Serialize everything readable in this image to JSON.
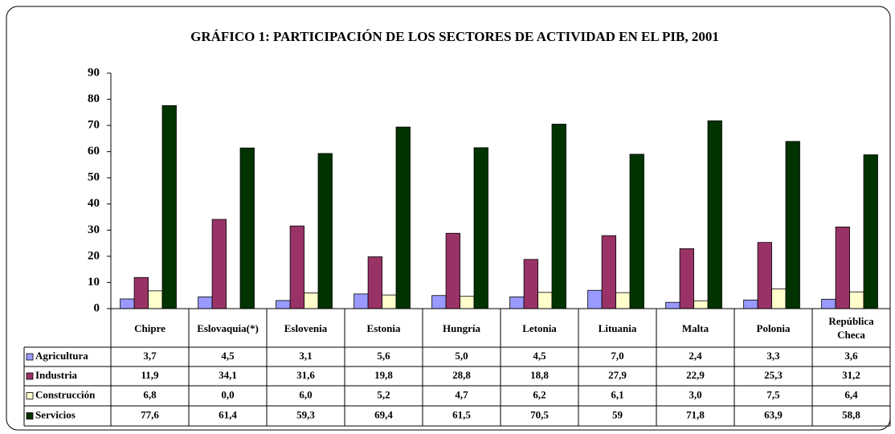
{
  "chart_data": {
    "type": "bar",
    "title": "GRÁFICO 1: PARTICIPACIÓN DE LOS SECTORES DE ACTIVIDAD EN EL PIB, 2001",
    "categories": [
      "Chipre",
      "Eslovaquia(*)",
      "Eslovenia",
      "Estonia",
      "Hungría",
      "Letonia",
      "Lituania",
      "Malta",
      "Polonia",
      "República Checa"
    ],
    "series": [
      {
        "name": "Agricultura",
        "color": "#9999ff",
        "values": [
          3.7,
          4.5,
          3.1,
          5.6,
          5.0,
          4.5,
          7.0,
          2.4,
          3.3,
          3.6
        ],
        "value_labels": [
          "3,7",
          "4,5",
          "3,1",
          "5,6",
          "5,0",
          "4,5",
          "7,0",
          "2,4",
          "3,3",
          "3,6"
        ]
      },
      {
        "name": "Industria",
        "color": "#993366",
        "values": [
          11.9,
          34.1,
          31.6,
          19.8,
          28.8,
          18.8,
          27.9,
          22.9,
          25.3,
          31.2
        ],
        "value_labels": [
          "11,9",
          "34,1",
          "31,6",
          "19,8",
          "28,8",
          "18,8",
          "27,9",
          "22,9",
          "25,3",
          "31,2"
        ]
      },
      {
        "name": "Construcción",
        "color": "#ffffcc",
        "values": [
          6.8,
          0.0,
          6.0,
          5.2,
          4.7,
          6.2,
          6.1,
          3.0,
          7.5,
          6.4
        ],
        "value_labels": [
          "6,8",
          "0,0",
          "6,0",
          "5,2",
          "4,7",
          "6,2",
          "6,1",
          "3,0",
          "7,5",
          "6,4"
        ]
      },
      {
        "name": "Servicios",
        "color": "#003300",
        "values": [
          77.6,
          61.4,
          59.3,
          69.4,
          61.5,
          70.5,
          59,
          71.8,
          63.9,
          58.8
        ],
        "value_labels": [
          "77,6",
          "61,4",
          "59,3",
          "69,4",
          "61,5",
          "70,5",
          "59",
          "71,8",
          "63,9",
          "58,8"
        ]
      }
    ],
    "ylim": [
      0,
      90
    ],
    "yticks": [
      0,
      10,
      20,
      30,
      40,
      50,
      60,
      70,
      80,
      90
    ],
    "grid": false
  }
}
